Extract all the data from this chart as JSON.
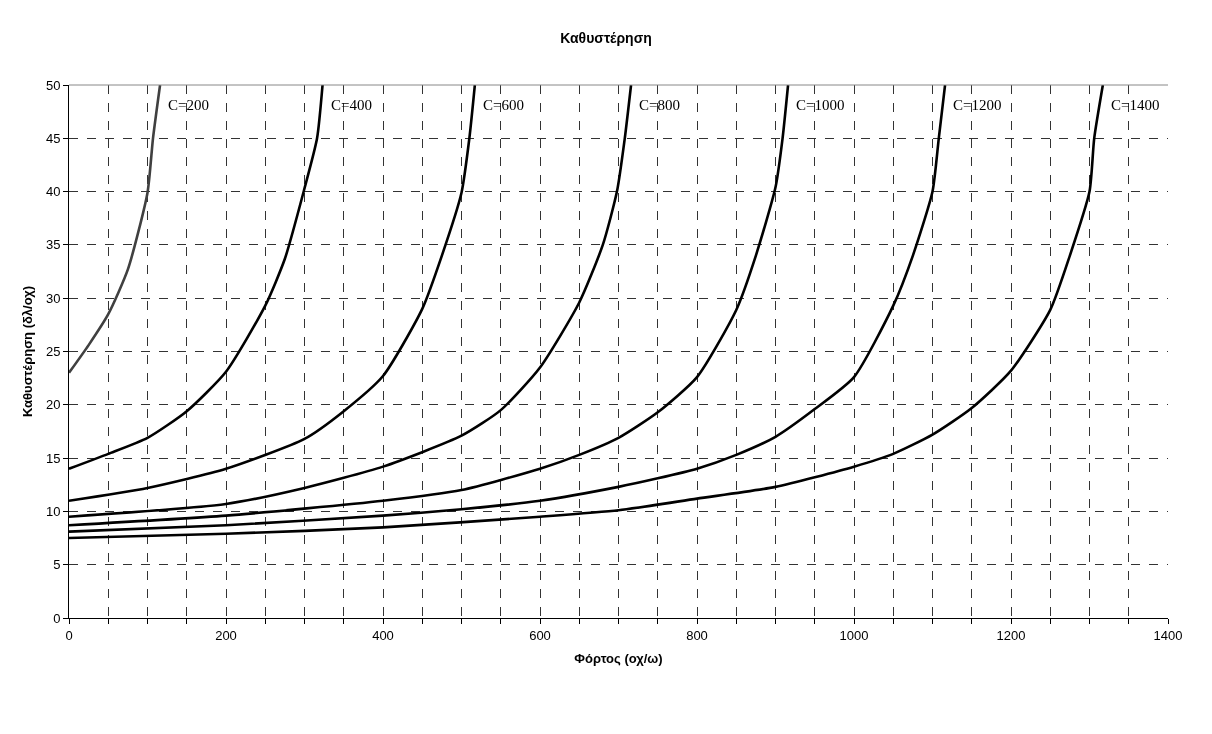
{
  "chart_data": {
    "type": "line",
    "title": "Καθυστέρηση",
    "xlabel": "Φόρτος (οχ/ω)",
    "ylabel": "Καθυστέρηση (δλ/οχ)",
    "xlim": [
      0,
      1400
    ],
    "ylim": [
      0,
      50
    ],
    "xticks": [
      0,
      {
        "value": 50,
        "label": null
      },
      {
        "value": 100,
        "label": null
      },
      {
        "value": 150,
        "label": null
      },
      200,
      {
        "value": 250,
        "label": null
      },
      {
        "value": 300,
        "label": null
      },
      {
        "value": 350,
        "label": null
      },
      400,
      {
        "value": 450,
        "label": null
      },
      {
        "value": 500,
        "label": null
      },
      {
        "value": 550,
        "label": null
      },
      600,
      {
        "value": 650,
        "label": null
      },
      {
        "value": 700,
        "label": null
      },
      {
        "value": 750,
        "label": null
      },
      800,
      {
        "value": 850,
        "label": null
      },
      {
        "value": 900,
        "label": null
      },
      {
        "value": 950,
        "label": null
      },
      1000,
      {
        "value": 1050,
        "label": null
      },
      {
        "value": 1100,
        "label": null
      },
      {
        "value": 1150,
        "label": null
      },
      1200,
      {
        "value": 1250,
        "label": null
      },
      {
        "value": 1300,
        "label": null
      },
      {
        "value": 1350,
        "label": null
      },
      1400
    ],
    "yticks": [
      0,
      5,
      10,
      15,
      20,
      25,
      30,
      35,
      40,
      45,
      50
    ],
    "grid": true,
    "legend": false,
    "marker": "none",
    "line_style": "solid",
    "series": [
      {
        "name": "C=200",
        "color": "#404040",
        "x": [
          0,
          25,
          50,
          75,
          100,
          107,
          116
        ],
        "values": [
          23.0,
          25.6,
          28.5,
          32.7,
          39.9,
          45,
          50
        ]
      },
      {
        "name": "C=400",
        "color": "#000000",
        "x": [
          0,
          50,
          100,
          150,
          200,
          250,
          275,
          300,
          316,
          323
        ],
        "values": [
          14.0,
          15.4,
          16.9,
          19.4,
          23.1,
          29.3,
          33.7,
          40.3,
          45,
          50
        ]
      },
      {
        "name": "C=600",
        "color": "#000000",
        "x": [
          0,
          100,
          200,
          300,
          350,
          400,
          450,
          475,
          500,
          510,
          517
        ],
        "values": [
          11.0,
          12.2,
          14.0,
          16.8,
          19.4,
          22.7,
          29.0,
          34,
          39.9,
          45,
          50
        ]
      },
      {
        "name": "C=800",
        "color": "#000000",
        "x": [
          0,
          200,
          300,
          400,
          500,
          550,
          600,
          650,
          680,
          698,
          708,
          716
        ],
        "values": [
          9.5,
          10.7,
          12.2,
          14.2,
          17.1,
          19.5,
          23.5,
          29.6,
          35,
          40,
          45,
          50
        ]
      },
      {
        "name": "C=1000",
        "color": "#000000",
        "x": [
          0,
          200,
          400,
          500,
          600,
          650,
          700,
          750,
          800,
          850,
          875,
          900,
          909,
          916
        ],
        "values": [
          8.7,
          9.6,
          11.0,
          12.0,
          14.0,
          15.3,
          16.9,
          19.3,
          22.6,
          28.9,
          34,
          40.4,
          45,
          50
        ]
      },
      {
        "name": "C=1200",
        "color": "#000000",
        "x": [
          0,
          200,
          400,
          500,
          600,
          700,
          750,
          800,
          850,
          900,
          950,
          1000,
          1050,
          1075,
          1100,
          1108,
          1116
        ],
        "values": [
          8.1,
          8.7,
          9.6,
          10.2,
          11.0,
          12.3,
          13.1,
          14.0,
          15.3,
          17.0,
          19.6,
          22.6,
          29.3,
          34,
          40.0,
          45,
          50
        ]
      },
      {
        "name": "C=1400",
        "color": "#000000",
        "x": [
          0,
          200,
          400,
          600,
          700,
          800,
          900,
          1000,
          1050,
          1100,
          1150,
          1200,
          1250,
          1275,
          1300,
          1306,
          1317
        ],
        "values": [
          7.5,
          7.9,
          8.5,
          9.5,
          10.1,
          11.2,
          12.3,
          14.2,
          15.4,
          17.2,
          19.7,
          23.2,
          28.9,
          34,
          40.0,
          45,
          50
        ]
      }
    ]
  }
}
